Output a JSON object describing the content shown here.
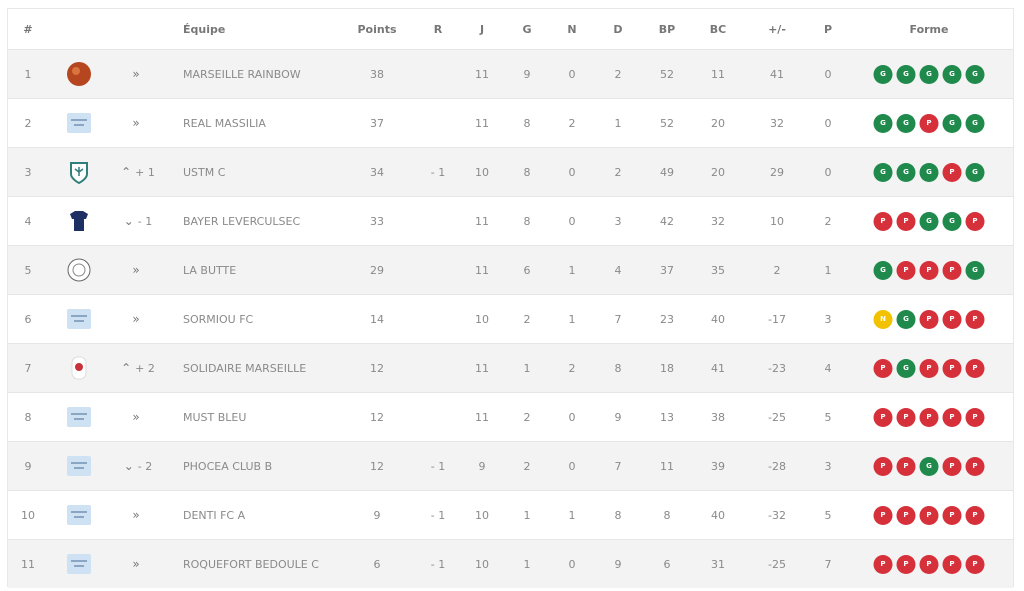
{
  "table": {
    "columns": [
      "#",
      "Équipe",
      "Points",
      "R",
      "J",
      "G",
      "N",
      "D",
      "BP",
      "BC",
      "+/-",
      "P",
      "Forme"
    ],
    "rows": [
      {
        "rank": 1,
        "movement": null,
        "team": "MARSEILLE RAINBOW",
        "points": 38,
        "r": null,
        "j": 11,
        "g": 9,
        "n": 0,
        "d": 2,
        "bp": 52,
        "bc": 11,
        "diff": 41,
        "p": 0,
        "form": [
          "G",
          "G",
          "G",
          "G",
          "G"
        ]
      },
      {
        "rank": 2,
        "movement": null,
        "team": "REAL MASSILIA",
        "points": 37,
        "r": null,
        "j": 11,
        "g": 8,
        "n": 2,
        "d": 1,
        "bp": 52,
        "bc": 20,
        "diff": 32,
        "p": 0,
        "form": [
          "G",
          "G",
          "P",
          "G",
          "G"
        ]
      },
      {
        "rank": 3,
        "movement": "+ 1",
        "team": "USTM C",
        "points": 34,
        "r": "- 1",
        "j": 10,
        "g": 8,
        "n": 0,
        "d": 2,
        "bp": 49,
        "bc": 20,
        "diff": 29,
        "p": 0,
        "form": [
          "G",
          "G",
          "G",
          "P",
          "G"
        ]
      },
      {
        "rank": 4,
        "movement": "- 1",
        "team": "BAYER LEVERCULSEC",
        "points": 33,
        "r": null,
        "j": 11,
        "g": 8,
        "n": 0,
        "d": 3,
        "bp": 42,
        "bc": 32,
        "diff": 10,
        "p": 2,
        "form": [
          "P",
          "P",
          "G",
          "G",
          "P"
        ]
      },
      {
        "rank": 5,
        "movement": null,
        "team": "LA BUTTE",
        "points": 29,
        "r": null,
        "j": 11,
        "g": 6,
        "n": 1,
        "d": 4,
        "bp": 37,
        "bc": 35,
        "diff": 2,
        "p": 1,
        "form": [
          "G",
          "P",
          "P",
          "P",
          "G"
        ]
      },
      {
        "rank": 6,
        "movement": null,
        "team": "SORMIOU FC",
        "points": 14,
        "r": null,
        "j": 10,
        "g": 2,
        "n": 1,
        "d": 7,
        "bp": 23,
        "bc": 40,
        "diff": -17,
        "p": 3,
        "form": [
          "N",
          "G",
          "P",
          "P",
          "P"
        ]
      },
      {
        "rank": 7,
        "movement": "+ 2",
        "team": "SOLIDAIRE MARSEILLE",
        "points": 12,
        "r": null,
        "j": 11,
        "g": 1,
        "n": 2,
        "d": 8,
        "bp": 18,
        "bc": 41,
        "diff": -23,
        "p": 4,
        "form": [
          "P",
          "G",
          "P",
          "P",
          "P"
        ]
      },
      {
        "rank": 8,
        "movement": null,
        "team": "MUST BLEU",
        "points": 12,
        "r": null,
        "j": 11,
        "g": 2,
        "n": 0,
        "d": 9,
        "bp": 13,
        "bc": 38,
        "diff": -25,
        "p": 5,
        "form": [
          "P",
          "P",
          "P",
          "P",
          "P"
        ]
      },
      {
        "rank": 9,
        "movement": "- 2",
        "team": "PHOCEA CLUB B",
        "points": 12,
        "r": "- 1",
        "j": 9,
        "g": 2,
        "n": 0,
        "d": 7,
        "bp": 11,
        "bc": 39,
        "diff": -28,
        "p": 3,
        "form": [
          "P",
          "P",
          "G",
          "P",
          "P"
        ]
      },
      {
        "rank": 10,
        "movement": null,
        "team": "DENTI FC A",
        "points": 9,
        "r": "- 1",
        "j": 10,
        "g": 1,
        "n": 1,
        "d": 8,
        "bp": 8,
        "bc": 40,
        "diff": -32,
        "p": 5,
        "form": [
          "P",
          "P",
          "P",
          "P",
          "P"
        ]
      },
      {
        "rank": 11,
        "movement": null,
        "team": "ROQUEFORT BEDOULE C",
        "points": 6,
        "r": "- 1",
        "j": 10,
        "g": 1,
        "n": 0,
        "d": 9,
        "bp": 6,
        "bc": 31,
        "diff": -25,
        "p": 7,
        "form": [
          "P",
          "P",
          "P",
          "P",
          "P"
        ]
      }
    ]
  }
}
